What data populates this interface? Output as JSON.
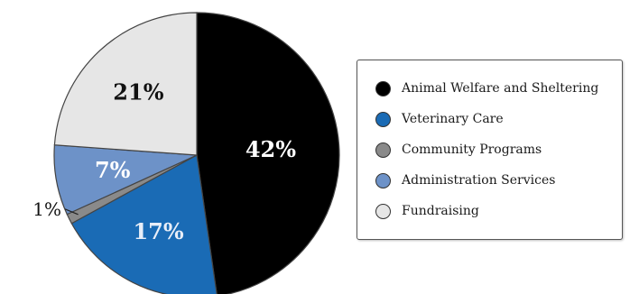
{
  "chart_data": {
    "type": "pie",
    "start_angle_deg": 0,
    "direction": "clockwise",
    "slices": [
      {
        "label": "Animal Welfare and Sheltering",
        "value": 42,
        "display": "42%",
        "color": "#000000",
        "label_color": "#ffffff"
      },
      {
        "label": "Veterinary Care",
        "value": 17,
        "display": "17%",
        "color": "#1a6bb5",
        "label_color": "#e8eef8"
      },
      {
        "label": "Community Programs",
        "value": 1,
        "display": "1%",
        "color": "#8a8a8a",
        "label_color": "#111111"
      },
      {
        "label": "Administration Services",
        "value": 7,
        "display": "7%",
        "color": "#6d92c8",
        "label_color": "#ffffff"
      },
      {
        "label": "Fundraising",
        "value": 21,
        "display": "21%",
        "color": "#e6e6e6",
        "label_color": "#111111"
      }
    ],
    "legend_position": "right"
  }
}
